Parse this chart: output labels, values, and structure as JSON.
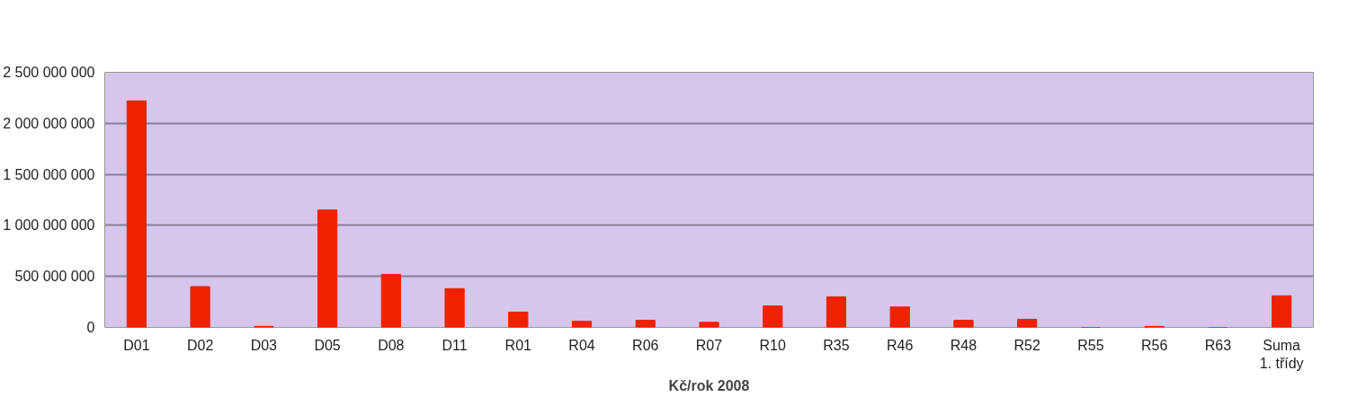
{
  "chart_data": {
    "type": "bar",
    "xlabel": "Kč/rok 2008",
    "categories": [
      "D01",
      "D02",
      "D03",
      "D05",
      "D08",
      "D11",
      "R01",
      "R04",
      "R06",
      "R07",
      "R10",
      "R35",
      "R46",
      "R48",
      "R52",
      "R55",
      "R56",
      "R63",
      "Suma\n1. třídy"
    ],
    "values": [
      2220000000,
      400000000,
      10000000,
      1150000000,
      520000000,
      380000000,
      150000000,
      60000000,
      70000000,
      50000000,
      210000000,
      300000000,
      200000000,
      70000000,
      80000000,
      0,
      10000000,
      0,
      310000000
    ],
    "color": "#ee2200",
    "ylim": [
      0,
      2500000000
    ],
    "yticks": [
      {
        "value": 0,
        "label": "0"
      },
      {
        "value": 500000000,
        "label": "500 000 000"
      },
      {
        "value": 1000000000,
        "label": "1 000 000 000"
      },
      {
        "value": 1500000000,
        "label": "1 500 000 000"
      },
      {
        "value": 2000000000,
        "label": "2 000 000 000"
      },
      {
        "value": 2500000000,
        "label": "2 500 000 000"
      }
    ],
    "grid": "y"
  }
}
